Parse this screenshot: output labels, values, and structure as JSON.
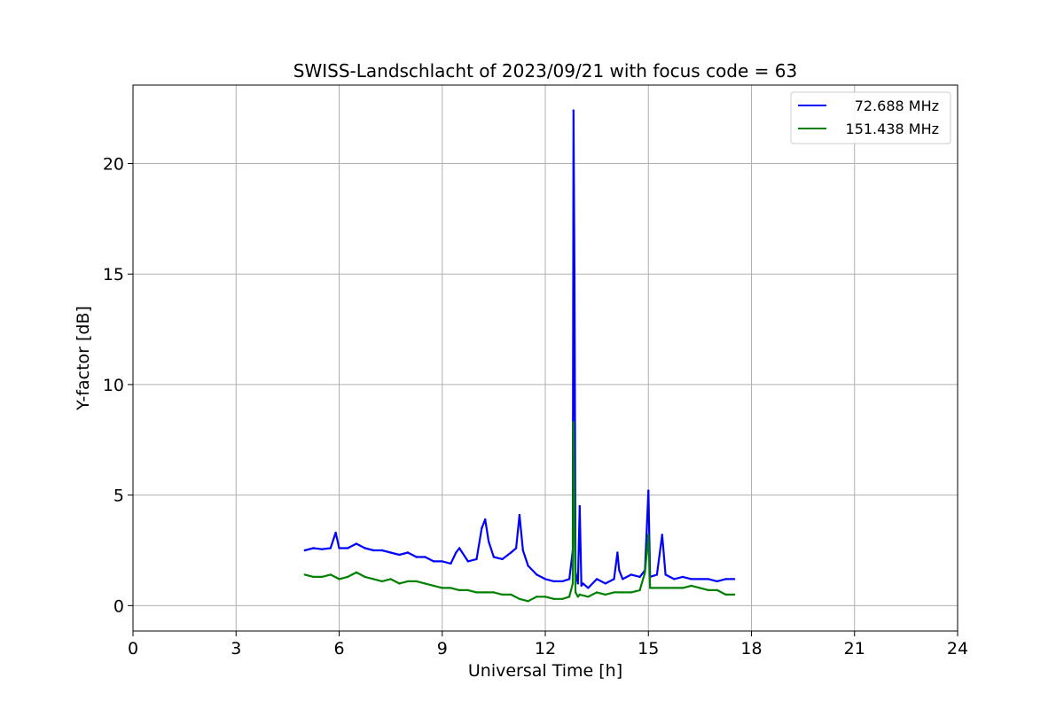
{
  "chart_data": {
    "type": "line",
    "title": "SWISS-Landschlacht of 2023/09/21 with focus code = 63",
    "xlabel": "Universal Time [h]",
    "ylabel": "Y-factor [dB]",
    "xlim": [
      0,
      24
    ],
    "ylim": [
      -1.15,
      23.55
    ],
    "xticks": [
      0,
      3,
      6,
      9,
      12,
      15,
      18,
      21,
      24
    ],
    "yticks": [
      0,
      5,
      10,
      15,
      20
    ],
    "grid": true,
    "legend_position": "top-right",
    "series": [
      {
        "name": "72.688 MHz",
        "color": "#0000ff",
        "x": [
          5.0,
          5.25,
          5.5,
          5.75,
          5.9,
          6.0,
          6.25,
          6.5,
          6.75,
          7.0,
          7.25,
          7.5,
          7.75,
          8.0,
          8.25,
          8.5,
          8.75,
          9.0,
          9.25,
          9.4,
          9.5,
          9.75,
          10.0,
          10.15,
          10.25,
          10.35,
          10.5,
          10.75,
          11.0,
          11.15,
          11.25,
          11.35,
          11.5,
          11.75,
          12.0,
          12.25,
          12.5,
          12.7,
          12.8,
          12.82,
          12.85,
          12.88,
          12.95,
          13.0,
          13.05,
          13.1,
          13.25,
          13.5,
          13.75,
          14.0,
          14.1,
          14.15,
          14.25,
          14.5,
          14.75,
          14.9,
          15.0,
          15.05,
          15.25,
          15.4,
          15.5,
          15.75,
          16.0,
          16.25,
          16.5,
          16.75,
          17.0,
          17.25,
          17.5
        ],
        "y": [
          2.5,
          2.6,
          2.55,
          2.6,
          3.3,
          2.6,
          2.6,
          2.8,
          2.6,
          2.5,
          2.5,
          2.4,
          2.3,
          2.4,
          2.2,
          2.2,
          2.0,
          2.0,
          1.9,
          2.4,
          2.6,
          2.0,
          2.1,
          3.5,
          3.9,
          2.9,
          2.2,
          2.1,
          2.4,
          2.6,
          4.1,
          2.5,
          1.8,
          1.4,
          1.2,
          1.1,
          1.1,
          1.2,
          2.5,
          22.4,
          15.0,
          1.5,
          1.0,
          4.5,
          0.9,
          1.0,
          0.8,
          1.2,
          1.0,
          1.2,
          2.4,
          1.6,
          1.2,
          1.4,
          1.3,
          1.6,
          5.2,
          1.3,
          1.4,
          3.2,
          1.4,
          1.2,
          1.3,
          1.2,
          1.2,
          1.2,
          1.1,
          1.2,
          1.2
        ]
      },
      {
        "name": "151.438 MHz",
        "color": "#008000",
        "x": [
          5.0,
          5.25,
          5.5,
          5.75,
          6.0,
          6.25,
          6.5,
          6.75,
          7.0,
          7.25,
          7.5,
          7.75,
          8.0,
          8.25,
          8.5,
          8.75,
          9.0,
          9.25,
          9.5,
          9.75,
          10.0,
          10.25,
          10.5,
          10.75,
          11.0,
          11.25,
          11.5,
          11.75,
          12.0,
          12.25,
          12.5,
          12.7,
          12.8,
          12.82,
          12.85,
          12.88,
          12.95,
          13.0,
          13.25,
          13.5,
          13.75,
          14.0,
          14.25,
          14.5,
          14.75,
          14.9,
          15.0,
          15.05,
          15.25,
          15.5,
          15.75,
          16.0,
          16.25,
          16.5,
          16.75,
          17.0,
          17.25,
          17.5
        ],
        "y": [
          1.4,
          1.3,
          1.3,
          1.4,
          1.2,
          1.3,
          1.5,
          1.3,
          1.2,
          1.1,
          1.2,
          1.0,
          1.1,
          1.1,
          1.0,
          0.9,
          0.8,
          0.8,
          0.7,
          0.7,
          0.6,
          0.6,
          0.6,
          0.5,
          0.5,
          0.3,
          0.2,
          0.4,
          0.4,
          0.3,
          0.3,
          0.4,
          1.0,
          8.3,
          5.0,
          0.6,
          0.4,
          0.5,
          0.4,
          0.6,
          0.5,
          0.6,
          0.6,
          0.6,
          0.7,
          1.5,
          3.2,
          0.8,
          0.8,
          0.8,
          0.8,
          0.8,
          0.9,
          0.8,
          0.7,
          0.7,
          0.5,
          0.5
        ]
      }
    ]
  }
}
